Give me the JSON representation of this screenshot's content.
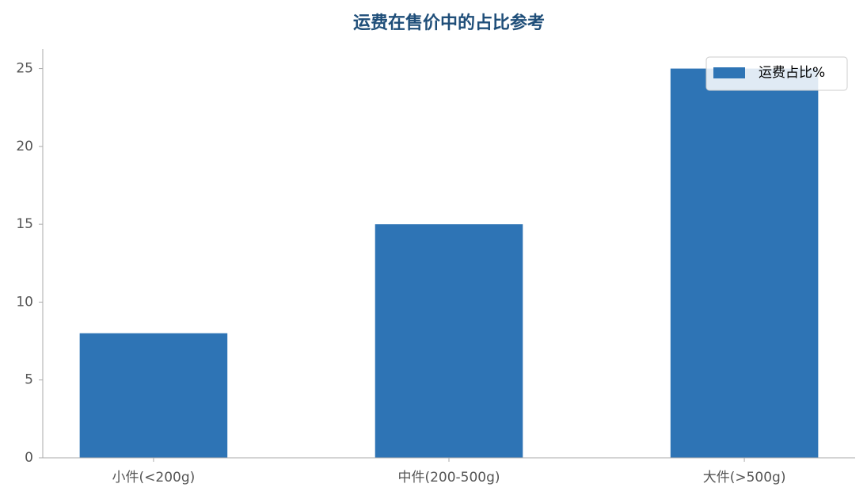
{
  "chart_data": {
    "type": "bar",
    "title": "运费在售价中的占比参考",
    "categories": [
      "小件(<200g)",
      "中件(200-500g)",
      "大件(>500g)"
    ],
    "series": [
      {
        "name": "运费占比%",
        "color": "#2e74b5",
        "values": [
          8,
          15,
          25
        ]
      }
    ],
    "ylim": [
      0,
      26.25
    ],
    "yticks": [
      0,
      5,
      10,
      15,
      20,
      25
    ],
    "grid": false,
    "legend": "upper right"
  }
}
